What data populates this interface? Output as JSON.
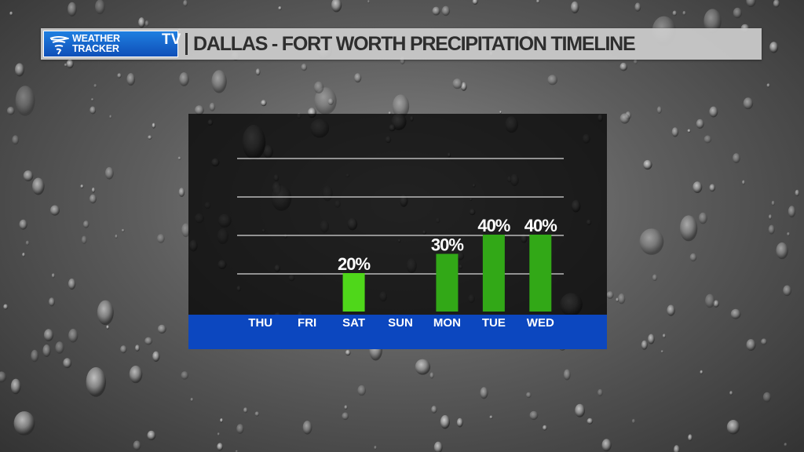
{
  "header": {
    "logo_line1": "WEATHER",
    "logo_line2": "TRACKER",
    "logo_tv": "TV",
    "title": "DALLAS - FORT WORTH PRECIPITATION TIMELINE"
  },
  "colors": {
    "bar_light": "#4fd71a",
    "bar_dark": "#32a817",
    "axis_band": "#0c47bf"
  },
  "chart_data": {
    "type": "bar",
    "categories": [
      "THU",
      "FRI",
      "SAT",
      "SUN",
      "MON",
      "TUE",
      "WED"
    ],
    "values": [
      0,
      0,
      20,
      0,
      30,
      40,
      40
    ],
    "value_labels": [
      "",
      "",
      "20%",
      "",
      "30%",
      "40%",
      "40%"
    ],
    "ylim": [
      0,
      100
    ],
    "grid": true,
    "legend": "none"
  }
}
